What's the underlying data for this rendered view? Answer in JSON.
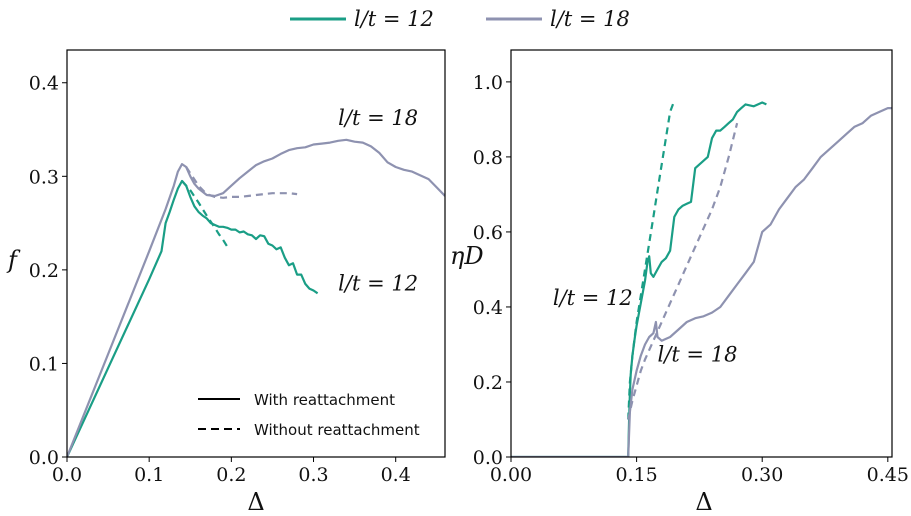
{
  "colors": {
    "l12": "#1a9e86",
    "l18": "#8e92b0"
  },
  "legend": {
    "series": [
      {
        "label": "l/t = 12",
        "color": "#1a9e86"
      },
      {
        "label": "l/t = 18",
        "color": "#8e92b0"
      }
    ],
    "styles": [
      {
        "label": "With reattachment",
        "dash": "solid"
      },
      {
        "label": "Without reattachment",
        "dash": "dashed"
      }
    ]
  },
  "chart_data": [
    {
      "type": "line",
      "xlabel": "Δ",
      "ylabel": "f",
      "xlim": [
        0,
        0.46
      ],
      "ylim": [
        0,
        0.435
      ],
      "xticks": [
        "0.0",
        "0.1",
        "0.2",
        "0.3",
        "0.4"
      ],
      "xtick_values": [
        0,
        0.1,
        0.2,
        0.3,
        0.4
      ],
      "yticks": [
        "0.0",
        "0.1",
        "0.2",
        "0.3",
        "0.4"
      ],
      "ytick_values": [
        0,
        0.1,
        0.2,
        0.3,
        0.4
      ],
      "annotations": [
        {
          "text": "l/t = 18",
          "x": 0.33,
          "y": 0.355
        },
        {
          "text": "l/t = 12",
          "x": 0.33,
          "y": 0.178
        }
      ],
      "series": [
        {
          "name": "l/t = 12",
          "style": "solid",
          "color": "#1a9e86",
          "x": [
            0,
            0.05,
            0.1,
            0.115,
            0.12,
            0.125,
            0.13,
            0.135,
            0.14,
            0.145,
            0.15,
            0.155,
            0.16,
            0.165,
            0.17,
            0.175,
            0.18,
            0.185,
            0.19,
            0.195,
            0.2,
            0.205,
            0.21,
            0.215,
            0.22,
            0.225,
            0.23,
            0.235,
            0.24,
            0.245,
            0.25,
            0.255,
            0.26,
            0.265,
            0.27,
            0.275,
            0.28,
            0.285,
            0.29,
            0.295,
            0.3,
            0.305
          ],
          "y": [
            0,
            0.095,
            0.19,
            0.22,
            0.25,
            0.262,
            0.275,
            0.287,
            0.295,
            0.29,
            0.278,
            0.268,
            0.262,
            0.258,
            0.255,
            0.25,
            0.248,
            0.246,
            0.246,
            0.245,
            0.243,
            0.243,
            0.24,
            0.241,
            0.238,
            0.237,
            0.233,
            0.237,
            0.236,
            0.228,
            0.226,
            0.222,
            0.224,
            0.213,
            0.205,
            0.207,
            0.195,
            0.195,
            0.185,
            0.18,
            0.178,
            0.175
          ]
        },
        {
          "name": "l/t = 12",
          "style": "dashed",
          "color": "#1a9e86",
          "x": [
            0.14,
            0.15,
            0.16,
            0.17,
            0.18,
            0.185,
            0.19,
            0.195
          ],
          "y": [
            0.295,
            0.285,
            0.272,
            0.258,
            0.245,
            0.238,
            0.232,
            0.225
          ]
        },
        {
          "name": "l/t = 18",
          "style": "solid",
          "color": "#8e92b0",
          "x": [
            0,
            0.05,
            0.1,
            0.12,
            0.13,
            0.135,
            0.14,
            0.145,
            0.15,
            0.155,
            0.16,
            0.17,
            0.18,
            0.19,
            0.2,
            0.21,
            0.22,
            0.23,
            0.24,
            0.25,
            0.26,
            0.27,
            0.28,
            0.29,
            0.3,
            0.31,
            0.32,
            0.33,
            0.34,
            0.35,
            0.36,
            0.37,
            0.38,
            0.39,
            0.4,
            0.41,
            0.42,
            0.43,
            0.44,
            0.45,
            0.46
          ],
          "y": [
            0,
            0.11,
            0.22,
            0.265,
            0.29,
            0.305,
            0.313,
            0.31,
            0.3,
            0.292,
            0.287,
            0.28,
            0.279,
            0.282,
            0.29,
            0.298,
            0.305,
            0.312,
            0.316,
            0.319,
            0.324,
            0.328,
            0.33,
            0.331,
            0.334,
            0.335,
            0.336,
            0.338,
            0.339,
            0.337,
            0.336,
            0.332,
            0.325,
            0.315,
            0.31,
            0.307,
            0.305,
            0.301,
            0.297,
            0.288,
            0.279
          ]
        },
        {
          "name": "l/t = 18",
          "style": "dashed",
          "color": "#8e92b0",
          "x": [
            0.145,
            0.16,
            0.17,
            0.18,
            0.19,
            0.2,
            0.21,
            0.22,
            0.23,
            0.24,
            0.25,
            0.26,
            0.27,
            0.28
          ],
          "y": [
            0.31,
            0.29,
            0.281,
            0.278,
            0.277,
            0.278,
            0.278,
            0.279,
            0.28,
            0.281,
            0.282,
            0.282,
            0.282,
            0.281
          ]
        }
      ]
    },
    {
      "type": "line",
      "xlabel": "Δ",
      "ylabel": "ηD",
      "xlim": [
        0,
        0.455
      ],
      "ylim": [
        0,
        1.085
      ],
      "xticks": [
        "0.00",
        "0.15",
        "0.30",
        "0.45"
      ],
      "xtick_values": [
        0,
        0.15,
        0.3,
        0.45
      ],
      "yticks": [
        "0.0",
        "0.2",
        "0.4",
        "0.6",
        "0.8",
        "1.0"
      ],
      "ytick_values": [
        0,
        0.2,
        0.4,
        0.6,
        0.8,
        1.0
      ],
      "annotations": [
        {
          "text": "l/t = 12",
          "x": 0.05,
          "y": 0.405
        },
        {
          "text": "l/t = 18",
          "x": 0.175,
          "y": 0.255
        }
      ],
      "series": [
        {
          "name": "l/t = 12",
          "style": "solid",
          "color": "#1a9e86",
          "x": [
            0,
            0.14,
            0.141,
            0.142,
            0.143,
            0.145,
            0.148,
            0.15,
            0.155,
            0.16,
            0.163,
            0.165,
            0.167,
            0.17,
            0.175,
            0.18,
            0.185,
            0.19,
            0.195,
            0.2,
            0.205,
            0.21,
            0.215,
            0.22,
            0.225,
            0.23,
            0.235,
            0.24,
            0.245,
            0.25,
            0.255,
            0.26,
            0.265,
            0.27,
            0.275,
            0.28,
            0.29,
            0.3,
            0.305
          ],
          "y": [
            0,
            0,
            0.1,
            0.17,
            0.22,
            0.27,
            0.32,
            0.35,
            0.41,
            0.47,
            0.52,
            0.535,
            0.49,
            0.48,
            0.5,
            0.52,
            0.53,
            0.55,
            0.64,
            0.66,
            0.67,
            0.675,
            0.68,
            0.77,
            0.78,
            0.79,
            0.8,
            0.85,
            0.87,
            0.87,
            0.88,
            0.89,
            0.9,
            0.92,
            0.93,
            0.94,
            0.935,
            0.945,
            0.94
          ]
        },
        {
          "name": "l/t = 12",
          "style": "dashed",
          "color": "#1a9e86",
          "x": [
            0.14,
            0.142,
            0.145,
            0.15,
            0.155,
            0.16,
            0.165,
            0.17,
            0.175,
            0.18,
            0.185,
            0.19,
            0.195
          ],
          "y": [
            0.1,
            0.2,
            0.27,
            0.36,
            0.43,
            0.5,
            0.57,
            0.64,
            0.71,
            0.78,
            0.85,
            0.92,
            0.95
          ]
        },
        {
          "name": "l/t = 18",
          "style": "solid",
          "color": "#8e92b0",
          "x": [
            0,
            0.14,
            0.142,
            0.145,
            0.15,
            0.155,
            0.16,
            0.165,
            0.17,
            0.173,
            0.175,
            0.18,
            0.19,
            0.2,
            0.21,
            0.22,
            0.23,
            0.24,
            0.25,
            0.26,
            0.27,
            0.28,
            0.29,
            0.3,
            0.31,
            0.32,
            0.33,
            0.34,
            0.35,
            0.36,
            0.37,
            0.38,
            0.39,
            0.4,
            0.41,
            0.42,
            0.43,
            0.44,
            0.45,
            0.455
          ],
          "y": [
            0,
            0,
            0.12,
            0.18,
            0.23,
            0.27,
            0.3,
            0.32,
            0.33,
            0.36,
            0.32,
            0.31,
            0.32,
            0.34,
            0.36,
            0.37,
            0.375,
            0.385,
            0.4,
            0.43,
            0.46,
            0.49,
            0.52,
            0.6,
            0.62,
            0.66,
            0.69,
            0.72,
            0.74,
            0.77,
            0.8,
            0.82,
            0.84,
            0.86,
            0.88,
            0.89,
            0.91,
            0.92,
            0.93,
            0.93
          ]
        },
        {
          "name": "l/t = 18",
          "style": "dashed",
          "color": "#8e92b0",
          "x": [
            0.14,
            0.145,
            0.15,
            0.155,
            0.16,
            0.17,
            0.18,
            0.19,
            0.2,
            0.21,
            0.22,
            0.23,
            0.24,
            0.25,
            0.26,
            0.27
          ],
          "y": [
            0.1,
            0.15,
            0.19,
            0.23,
            0.26,
            0.31,
            0.36,
            0.41,
            0.46,
            0.51,
            0.56,
            0.61,
            0.66,
            0.72,
            0.8,
            0.89
          ]
        }
      ]
    }
  ]
}
